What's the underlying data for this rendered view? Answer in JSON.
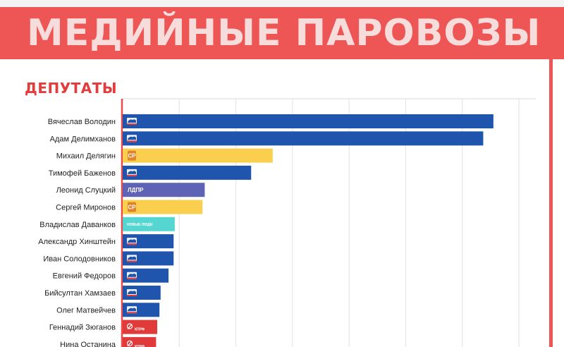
{
  "header": {
    "title": "МЕДИЙНЫЕ ПАРОВОЗЫ",
    "banner_color": "#ee5555"
  },
  "section": {
    "title": "ДЕПУТАТЫ",
    "title_color": "#e23c3c"
  },
  "parties": {
    "er": {
      "color": "#1f55ad",
      "logo_icon": "bear-icon"
    },
    "sr": {
      "color": "#f9cf4d",
      "logo_icon": "sr-logo-icon",
      "logo_text": "СР"
    },
    "ldpr": {
      "color": "#5e63b5",
      "logo_icon": "ldpr-logo-icon",
      "logo_text": "ЛДПР"
    },
    "nl": {
      "color": "#56d6d0",
      "logo_icon": "new-people-logo-icon",
      "logo_text": "НОВЫЕ ЛЮДИ"
    },
    "kprf": {
      "color": "#e03a3a",
      "logo_icon": "hammer-sickle-icon",
      "logo_text": "КПРФ"
    }
  },
  "chart_data": {
    "type": "bar",
    "orientation": "horizontal",
    "categories": [
      "Вячеслав Володин",
      "Адам Делимханов",
      "Михаил Делягин",
      "Тимофей Баженов",
      "Леонид Слуцкий",
      "Сергей Миронов",
      "Владислав Даванков",
      "Александр Хинштейн",
      "Иван Солодовников",
      "Евгений Федоров",
      "Бийсултан Хамзаев",
      "Олег Матвейчев",
      "Геннадий Зюганов",
      "Нина Останина"
    ],
    "values": [
      6.55,
      6.37,
      2.65,
      2.27,
      1.45,
      1.41,
      0.92,
      0.9,
      0.9,
      0.81,
      0.67,
      0.65,
      0.61,
      0.59
    ],
    "party": [
      "er",
      "er",
      "sr",
      "er",
      "ldpr",
      "sr",
      "nl",
      "er",
      "er",
      "er",
      "er",
      "er",
      "kprf",
      "kprf"
    ],
    "xlim": [
      0,
      7
    ],
    "grid": true,
    "xlabel": "",
    "ylabel": ""
  }
}
